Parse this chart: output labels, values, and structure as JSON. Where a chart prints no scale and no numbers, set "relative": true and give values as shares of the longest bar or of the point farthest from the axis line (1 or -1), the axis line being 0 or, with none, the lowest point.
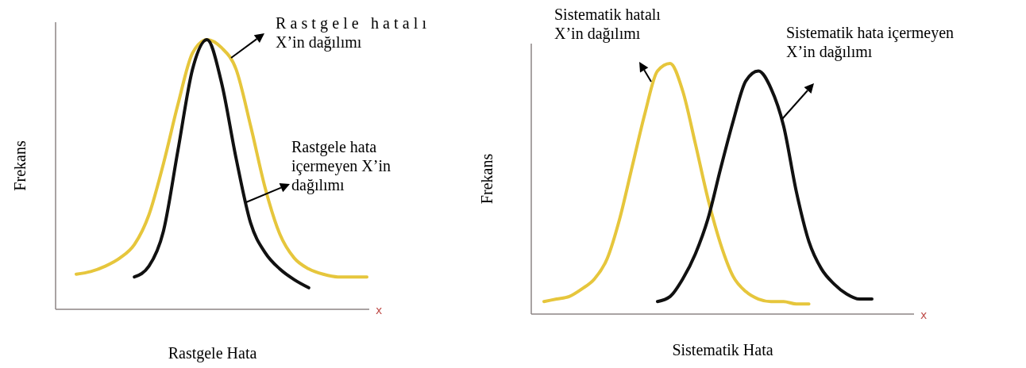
{
  "chart_data": [
    {
      "type": "line",
      "relative": true,
      "xlabel": "Rastgele Hata",
      "ylabel": "Frekans",
      "categories": [
        null,
        null,
        null,
        null,
        null,
        null,
        null,
        null,
        null,
        null,
        null,
        null,
        null,
        null,
        null,
        null,
        null,
        null,
        null,
        null,
        null
      ],
      "series": [
        {
          "color": "#e6c63c",
          "values": [
            0.13,
            0.14,
            0.16,
            0.19,
            0.24,
            0.35,
            0.54,
            0.76,
            0.95,
            1,
            0.97,
            0.89,
            0.68,
            0.45,
            0.28,
            0.19,
            0.15,
            0.13,
            0.12,
            0.12,
            0.12
          ]
        },
        {
          "color": "#111111",
          "values": [
            null,
            null,
            null,
            null,
            0.12,
            0.16,
            0.29,
            0.59,
            0.89,
            1,
            0.84,
            0.56,
            0.32,
            0.21,
            0.15,
            0.11,
            0.08,
            null,
            null,
            null,
            null
          ]
        }
      ],
      "annotations": [
        "Rastgele hatalı X’in dağılımı",
        "Rastgele hata içermeyen X’in dağılımı",
        "x"
      ]
    },
    {
      "type": "line",
      "relative": true,
      "xlabel": "Sistematik Hata",
      "ylabel": "Frekans",
      "categories": [
        null,
        null,
        null,
        null,
        null,
        null,
        null,
        null,
        null,
        null,
        null,
        null,
        null,
        null,
        null,
        null,
        null,
        null,
        null,
        null,
        null,
        null,
        null,
        null,
        null,
        null,
        null
      ],
      "series": [
        {
          "color": "#e6c63c",
          "values": [
            0.05,
            0.06,
            0.07,
            0.1,
            0.14,
            0.22,
            0.38,
            0.59,
            0.8,
            0.97,
            1,
            0.89,
            0.68,
            0.46,
            0.28,
            0.15,
            0.09,
            0.06,
            0.05,
            0.05,
            0.04,
            0.04,
            null,
            null,
            null,
            null,
            null
          ]
        },
        {
          "color": "#111111",
          "values": [
            null,
            null,
            null,
            null,
            null,
            null,
            null,
            null,
            null,
            0.05,
            0.07,
            0.14,
            0.24,
            0.38,
            0.58,
            0.77,
            0.93,
            0.97,
            0.9,
            0.75,
            0.49,
            0.29,
            0.18,
            0.12,
            0.08,
            0.06,
            0.06
          ]
        }
      ],
      "annotations": [
        "Sistematik hatalı X’in dağılımı",
        "Sistematik hata içermeyen X’in dağılımı",
        "x"
      ]
    }
  ]
}
